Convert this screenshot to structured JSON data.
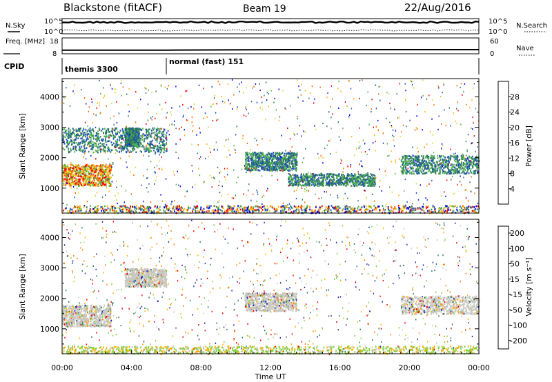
{
  "header": {
    "station": "Blackstone (fitACF)",
    "beam": "Beam 19",
    "date": "22/Aug/2016"
  },
  "chart_data": [
    {
      "type": "line",
      "panel": "noise",
      "left_label": "N.Sky",
      "right_label": "N.Search",
      "yticks_left": [
        "10^5",
        "10^0"
      ],
      "yticks_right": [
        "10^5",
        "10^0"
      ],
      "series": [
        {
          "name": "N.Sky",
          "style": "solid"
        },
        {
          "name": "N.Search",
          "style": "dotted"
        }
      ]
    },
    {
      "type": "line",
      "panel": "frequency",
      "left_label": "Freq. [MHz]",
      "right_label": "Nave",
      "yticks_left": [
        "18",
        "8"
      ],
      "yticks_right": [
        "60",
        "0"
      ],
      "ylim_left": [
        8,
        18
      ],
      "x": [
        "00:00",
        "06:00",
        "13:00",
        "24:00"
      ],
      "series": [
        {
          "name": "Freq.",
          "values": [
            10.3,
            10.3,
            10.6,
            10.6
          ]
        }
      ]
    },
    {
      "type": "table",
      "panel": "cpid",
      "label": "CPID",
      "segments": [
        {
          "text": "themis 3300",
          "start_h": 0,
          "end_h": 6
        },
        {
          "text": "normal (fast) 151",
          "start_h": 6,
          "end_h": 24
        }
      ]
    },
    {
      "type": "heatmap",
      "panel": "power",
      "ylabel": "Slant Range [km]",
      "ylim": [
        180,
        4600
      ],
      "yticks": [
        "1000",
        "2000",
        "3000",
        "4000"
      ],
      "colorbar_label": "Power [dB]",
      "colorbar_ticks": [
        "4",
        "8",
        "12",
        "16",
        "20",
        "24",
        "28"
      ],
      "colorbar_colors": [
        "#0000f0",
        "#1e50b4",
        "#2f7a5a",
        "#4fb24f",
        "#d8d83a",
        "#ffb000",
        "#ff6a00",
        "#f00000"
      ],
      "echo_regions": [
        {
          "from_h": 0.0,
          "to_h": 2.8,
          "range_km": [
            1100,
            1800
          ],
          "level": "high"
        },
        {
          "from_h": 0.0,
          "to_h": 6.0,
          "range_km": [
            2200,
            3000
          ],
          "level": "mid"
        },
        {
          "from_h": 3.6,
          "to_h": 4.4,
          "range_km": [
            2400,
            3000
          ],
          "level": "mid"
        },
        {
          "from_h": 10.5,
          "to_h": 13.5,
          "range_km": [
            1600,
            2200
          ],
          "level": "mid"
        },
        {
          "from_h": 13.0,
          "to_h": 18.0,
          "range_km": [
            1100,
            1500
          ],
          "level": "mid"
        },
        {
          "from_h": 19.5,
          "to_h": 24.0,
          "range_km": [
            1500,
            2100
          ],
          "level": "mid"
        },
        {
          "from_h": 0.0,
          "to_h": 24.0,
          "range_km": [
            200,
            450
          ],
          "level": "ground"
        }
      ]
    },
    {
      "type": "heatmap",
      "panel": "velocity",
      "ylabel": "Slant Range [km]",
      "xlabel": "Time UT",
      "ylim": [
        180,
        4600
      ],
      "yticks": [
        "1000",
        "2000",
        "3000",
        "4000"
      ],
      "xticks": [
        "00:00",
        "04:00",
        "08:00",
        "12:00",
        "16:00",
        "20:00",
        "00:00"
      ],
      "colorbar_label": "Velocity [m s⁻¹]",
      "colorbar_ticks": [
        "200",
        "100",
        "50",
        "15",
        "-15",
        "-50",
        "-100",
        "-200"
      ],
      "colorbar_colors": [
        "#2030b0",
        "#2f7a5a",
        "#7ad23c",
        "#c8c8c0",
        "#ffb000",
        "#ff8000",
        "#f00000"
      ],
      "echo_regions": [
        {
          "from_h": 0.0,
          "to_h": 2.8,
          "range_km": [
            1100,
            1800
          ],
          "velocity": "near-zero"
        },
        {
          "from_h": 3.6,
          "to_h": 6.0,
          "range_km": [
            2400,
            3000
          ],
          "velocity": "near-zero"
        },
        {
          "from_h": 10.5,
          "to_h": 13.5,
          "range_km": [
            1600,
            2200
          ],
          "velocity": "near-zero"
        },
        {
          "from_h": 19.5,
          "to_h": 24.0,
          "range_km": [
            1500,
            2100
          ],
          "velocity": "near-zero"
        },
        {
          "from_h": 0.0,
          "to_h": 24.0,
          "range_km": [
            200,
            450
          ],
          "velocity": "ground"
        }
      ]
    }
  ]
}
